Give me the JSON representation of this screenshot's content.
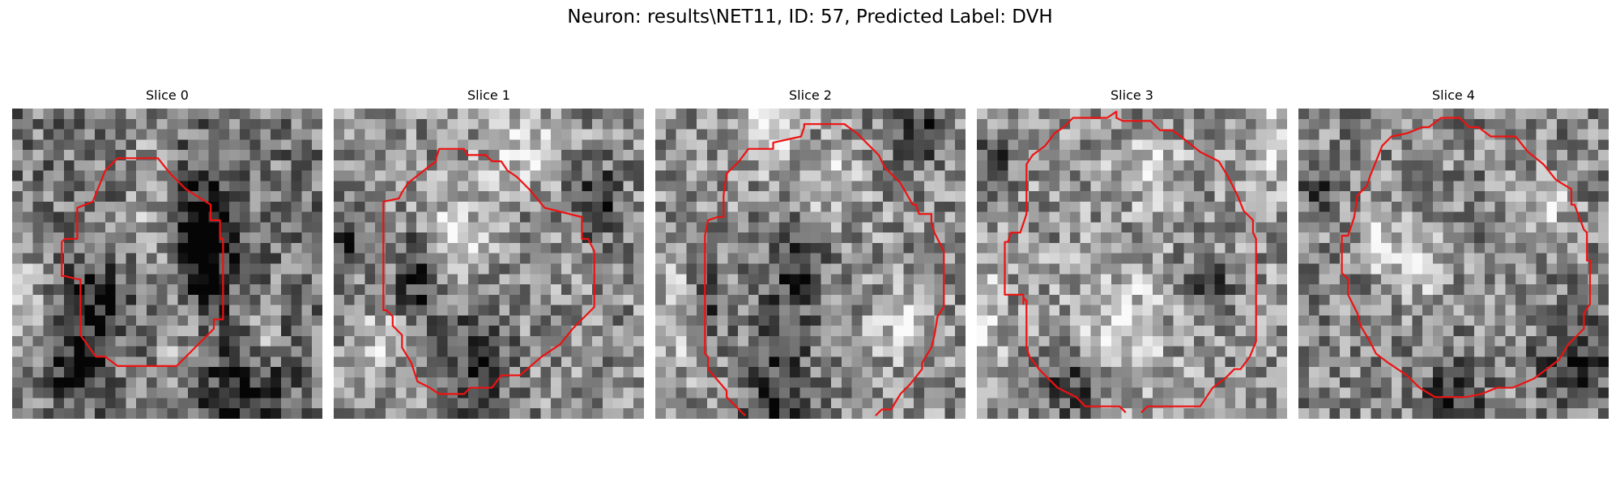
{
  "figure": {
    "title": "Neuron: results\\NET11, ID: 57, Predicted Label: DVH"
  },
  "panels": [
    {
      "title": "Slice 0",
      "seed": 11,
      "mean": 0.47,
      "dark_spots": [
        [
          0.6,
          0.38,
          0.13,
          0.22
        ],
        [
          0.28,
          0.63,
          0.1,
          0.14
        ],
        [
          0.7,
          0.96,
          0.2,
          0.25
        ],
        [
          0.2,
          0.85,
          0.08,
          0.12
        ],
        [
          0.62,
          0.48,
          0.07,
          0.15
        ]
      ],
      "light_spots": [
        [
          0.45,
          0.35,
          0.08,
          0.25
        ],
        [
          0.55,
          0.83,
          0.1,
          0.22
        ],
        [
          0.05,
          0.62,
          0.06,
          0.18
        ],
        [
          0.8,
          0.72,
          0.06,
          0.12
        ]
      ],
      "outline": [
        [
          0.34,
          0.16
        ],
        [
          0.47,
          0.16
        ],
        [
          0.51,
          0.21
        ],
        [
          0.56,
          0.26
        ],
        [
          0.64,
          0.31
        ],
        [
          0.64,
          0.36
        ],
        [
          0.67,
          0.36
        ],
        [
          0.67,
          0.42
        ],
        [
          0.68,
          0.42
        ],
        [
          0.68,
          0.68
        ],
        [
          0.65,
          0.68
        ],
        [
          0.65,
          0.71
        ],
        [
          0.6,
          0.76
        ],
        [
          0.53,
          0.83
        ],
        [
          0.34,
          0.83
        ],
        [
          0.3,
          0.8
        ],
        [
          0.27,
          0.8
        ],
        [
          0.22,
          0.73
        ],
        [
          0.22,
          0.55
        ],
        [
          0.21,
          0.55
        ],
        [
          0.17,
          0.54
        ],
        [
          0.16,
          0.54
        ],
        [
          0.16,
          0.43
        ],
        [
          0.17,
          0.42
        ],
        [
          0.21,
          0.42
        ],
        [
          0.21,
          0.32
        ],
        [
          0.26,
          0.3
        ],
        [
          0.3,
          0.2
        ]
      ],
      "outline_closed": true
    },
    {
      "title": "Slice 1",
      "seed": 23,
      "mean": 0.55,
      "dark_spots": [
        [
          0.47,
          0.83,
          0.1,
          0.2
        ],
        [
          0.27,
          0.55,
          0.08,
          0.14
        ],
        [
          0.85,
          0.3,
          0.08,
          0.12
        ],
        [
          0.05,
          0.4,
          0.07,
          0.12
        ]
      ],
      "light_spots": [
        [
          0.4,
          0.4,
          0.1,
          0.15
        ],
        [
          0.6,
          0.1,
          0.12,
          0.14
        ],
        [
          0.15,
          0.75,
          0.07,
          0.1
        ]
      ],
      "outline": [
        [
          0.33,
          0.17
        ],
        [
          0.33,
          0.16
        ],
        [
          0.34,
          0.13
        ],
        [
          0.42,
          0.13
        ],
        [
          0.43,
          0.15
        ],
        [
          0.49,
          0.15
        ],
        [
          0.51,
          0.17
        ],
        [
          0.54,
          0.17
        ],
        [
          0.56,
          0.2
        ],
        [
          0.59,
          0.22
        ],
        [
          0.63,
          0.26
        ],
        [
          0.68,
          0.32
        ],
        [
          0.8,
          0.35
        ],
        [
          0.8,
          0.42
        ],
        [
          0.82,
          0.42
        ],
        [
          0.84,
          0.46
        ],
        [
          0.84,
          0.64
        ],
        [
          0.8,
          0.68
        ],
        [
          0.77,
          0.71
        ],
        [
          0.73,
          0.76
        ],
        [
          0.67,
          0.8
        ],
        [
          0.6,
          0.86
        ],
        [
          0.54,
          0.86
        ],
        [
          0.51,
          0.9
        ],
        [
          0.44,
          0.9
        ],
        [
          0.42,
          0.92
        ],
        [
          0.34,
          0.92
        ],
        [
          0.31,
          0.9
        ],
        [
          0.27,
          0.88
        ],
        [
          0.25,
          0.82
        ],
        [
          0.22,
          0.77
        ],
        [
          0.22,
          0.73
        ],
        [
          0.19,
          0.7
        ],
        [
          0.19,
          0.67
        ],
        [
          0.17,
          0.65
        ],
        [
          0.16,
          0.65
        ],
        [
          0.16,
          0.3
        ],
        [
          0.21,
          0.29
        ],
        [
          0.22,
          0.27
        ],
        [
          0.24,
          0.24
        ],
        [
          0.29,
          0.2
        ]
      ],
      "outline_closed": true
    },
    {
      "title": "Slice 2",
      "seed": 37,
      "mean": 0.56,
      "dark_spots": [
        [
          0.4,
          0.97,
          0.12,
          0.3
        ],
        [
          0.15,
          0.62,
          0.06,
          0.12
        ],
        [
          0.45,
          0.48,
          0.1,
          0.15
        ],
        [
          0.85,
          0.05,
          0.1,
          0.14
        ]
      ],
      "light_spots": [
        [
          0.08,
          0.65,
          0.05,
          0.2
        ],
        [
          0.35,
          0.05,
          0.1,
          0.14
        ],
        [
          0.8,
          0.7,
          0.1,
          0.1
        ],
        [
          0.55,
          0.25,
          0.09,
          0.1
        ]
      ],
      "outline": [
        [
          0.48,
          0.06
        ],
        [
          0.48,
          0.05
        ],
        [
          0.61,
          0.05
        ],
        [
          0.65,
          0.08
        ],
        [
          0.72,
          0.15
        ],
        [
          0.74,
          0.19
        ],
        [
          0.79,
          0.24
        ],
        [
          0.83,
          0.31
        ],
        [
          0.84,
          0.31
        ],
        [
          0.85,
          0.34
        ],
        [
          0.89,
          0.34
        ],
        [
          0.89,
          0.37
        ],
        [
          0.9,
          0.4
        ],
        [
          0.91,
          0.42
        ],
        [
          0.93,
          0.46
        ],
        [
          0.93,
          0.57
        ],
        [
          0.93,
          0.64
        ],
        [
          0.91,
          0.67
        ],
        [
          0.9,
          0.73
        ],
        [
          0.89,
          0.77
        ],
        [
          0.86,
          0.82
        ],
        [
          0.86,
          0.84
        ],
        [
          0.82,
          0.89
        ],
        [
          0.79,
          0.92
        ],
        [
          0.76,
          0.97
        ],
        [
          0.73,
          0.97
        ],
        [
          0.71,
          0.99
        ]
      ],
      "outline_open_start": [
        [
          0.29,
          0.99
        ],
        [
          0.23,
          0.93
        ],
        [
          0.23,
          0.91
        ],
        [
          0.17,
          0.84
        ],
        [
          0.17,
          0.8
        ],
        [
          0.16,
          0.79
        ],
        [
          0.16,
          0.41
        ],
        [
          0.17,
          0.36
        ],
        [
          0.2,
          0.35
        ],
        [
          0.22,
          0.35
        ],
        [
          0.22,
          0.28
        ],
        [
          0.23,
          0.21
        ],
        [
          0.27,
          0.17
        ],
        [
          0.3,
          0.13
        ],
        [
          0.38,
          0.13
        ],
        [
          0.38,
          0.11
        ],
        [
          0.47,
          0.09
        ],
        [
          0.48,
          0.06
        ]
      ],
      "outline_closed": false
    },
    {
      "title": "Slice 3",
      "seed": 53,
      "mean": 0.58,
      "dark_spots": [
        [
          0.3,
          0.9,
          0.1,
          0.12
        ],
        [
          0.05,
          0.18,
          0.07,
          0.1
        ],
        [
          0.75,
          0.55,
          0.07,
          0.08
        ]
      ],
      "light_spots": [
        [
          0.45,
          0.7,
          0.14,
          0.18
        ],
        [
          0.02,
          0.7,
          0.06,
          0.2
        ],
        [
          0.95,
          0.12,
          0.06,
          0.14
        ],
        [
          0.55,
          0.2,
          0.1,
          0.1
        ]
      ],
      "outline": [
        [
          0.42,
          0.03
        ],
        [
          0.45,
          0.01
        ],
        [
          0.45,
          0.03
        ],
        [
          0.47,
          0.04
        ],
        [
          0.56,
          0.04
        ],
        [
          0.59,
          0.07
        ],
        [
          0.63,
          0.07
        ],
        [
          0.67,
          0.1
        ],
        [
          0.72,
          0.14
        ],
        [
          0.78,
          0.17
        ],
        [
          0.81,
          0.22
        ],
        [
          0.84,
          0.28
        ],
        [
          0.86,
          0.33
        ],
        [
          0.89,
          0.36
        ],
        [
          0.89,
          0.4
        ],
        [
          0.9,
          0.42
        ],
        [
          0.9,
          0.75
        ],
        [
          0.88,
          0.8
        ],
        [
          0.85,
          0.84
        ],
        [
          0.83,
          0.84
        ],
        [
          0.8,
          0.87
        ],
        [
          0.76,
          0.9
        ],
        [
          0.72,
          0.96
        ],
        [
          0.55,
          0.96
        ],
        [
          0.53,
          0.98
        ]
      ],
      "outline_open_start": [
        [
          0.48,
          0.98
        ],
        [
          0.46,
          0.96
        ],
        [
          0.35,
          0.96
        ],
        [
          0.32,
          0.93
        ],
        [
          0.26,
          0.9
        ],
        [
          0.2,
          0.84
        ],
        [
          0.17,
          0.8
        ],
        [
          0.16,
          0.77
        ],
        [
          0.16,
          0.62
        ],
        [
          0.15,
          0.61
        ],
        [
          0.15,
          0.63
        ],
        [
          0.15,
          0.62
        ],
        [
          0.15,
          0.6
        ],
        [
          0.09,
          0.6
        ],
        [
          0.09,
          0.58
        ],
        [
          0.09,
          0.43
        ],
        [
          0.1,
          0.43
        ],
        [
          0.1,
          0.43
        ],
        [
          0.11,
          0.4
        ],
        [
          0.14,
          0.4
        ],
        [
          0.16,
          0.34
        ],
        [
          0.16,
          0.18
        ],
        [
          0.18,
          0.15
        ],
        [
          0.22,
          0.12
        ],
        [
          0.25,
          0.08
        ],
        [
          0.28,
          0.06
        ],
        [
          0.31,
          0.03
        ],
        [
          0.42,
          0.03
        ]
      ],
      "outline_closed": false
    },
    {
      "title": "Slice 4",
      "seed": 71,
      "mean": 0.53,
      "dark_spots": [
        [
          0.9,
          0.83,
          0.12,
          0.14
        ],
        [
          0.05,
          0.27,
          0.05,
          0.06
        ],
        [
          0.5,
          0.95,
          0.1,
          0.12
        ]
      ],
      "light_spots": [
        [
          0.4,
          0.5,
          0.1,
          0.12
        ],
        [
          0.8,
          0.3,
          0.08,
          0.1
        ],
        [
          0.25,
          0.4,
          0.05,
          0.12
        ]
      ],
      "outline": [
        [
          0.4,
          0.06
        ],
        [
          0.42,
          0.06
        ],
        [
          0.46,
          0.03
        ],
        [
          0.52,
          0.03
        ],
        [
          0.55,
          0.06
        ],
        [
          0.58,
          0.06
        ],
        [
          0.62,
          0.09
        ],
        [
          0.7,
          0.09
        ],
        [
          0.74,
          0.14
        ],
        [
          0.79,
          0.18
        ],
        [
          0.83,
          0.23
        ],
        [
          0.88,
          0.26
        ],
        [
          0.88,
          0.31
        ],
        [
          0.89,
          0.31
        ],
        [
          0.92,
          0.39
        ],
        [
          0.93,
          0.4
        ],
        [
          0.93,
          0.49
        ],
        [
          0.94,
          0.49
        ],
        [
          0.94,
          0.63
        ],
        [
          0.92,
          0.66
        ],
        [
          0.92,
          0.71
        ],
        [
          0.87,
          0.76
        ],
        [
          0.84,
          0.81
        ],
        [
          0.8,
          0.84
        ],
        [
          0.76,
          0.87
        ],
        [
          0.69,
          0.9
        ],
        [
          0.64,
          0.9
        ],
        [
          0.59,
          0.92
        ],
        [
          0.54,
          0.93
        ],
        [
          0.44,
          0.93
        ],
        [
          0.39,
          0.9
        ],
        [
          0.35,
          0.86
        ],
        [
          0.29,
          0.82
        ],
        [
          0.25,
          0.79
        ],
        [
          0.23,
          0.75
        ],
        [
          0.2,
          0.7
        ],
        [
          0.19,
          0.66
        ],
        [
          0.17,
          0.62
        ],
        [
          0.16,
          0.6
        ],
        [
          0.16,
          0.55
        ],
        [
          0.14,
          0.53
        ],
        [
          0.14,
          0.41
        ],
        [
          0.16,
          0.41
        ],
        [
          0.17,
          0.38
        ],
        [
          0.18,
          0.35
        ],
        [
          0.19,
          0.28
        ],
        [
          0.22,
          0.25
        ],
        [
          0.23,
          0.22
        ],
        [
          0.25,
          0.17
        ],
        [
          0.27,
          0.12
        ],
        [
          0.3,
          0.09
        ],
        [
          0.35,
          0.08
        ]
      ],
      "outline_closed": true
    }
  ],
  "style": {
    "outline_color": "#ee1111"
  }
}
